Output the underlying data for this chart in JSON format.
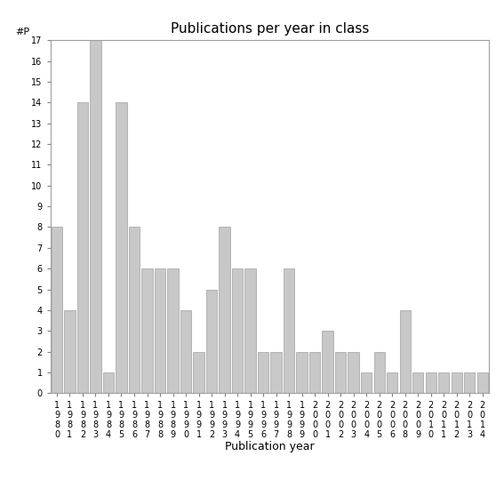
{
  "title": "Publications per year in class",
  "xlabel": "Publication year",
  "ylabel": "#P",
  "bar_color": "#c8c8c8",
  "bar_edgecolor": "#a0a0a0",
  "background_color": "#ffffff",
  "ylim": [
    0,
    17
  ],
  "yticks": [
    0,
    1,
    2,
    3,
    4,
    5,
    6,
    7,
    8,
    9,
    10,
    11,
    12,
    13,
    14,
    15,
    16,
    17
  ],
  "years": [
    "1980",
    "1981",
    "1982",
    "1983",
    "1984",
    "1985",
    "1986",
    "1987",
    "1988",
    "1989",
    "1990",
    "1991",
    "1992",
    "1993",
    "1994",
    "1995",
    "1996",
    "1997",
    "1998",
    "1999",
    "2000",
    "2001",
    "2002",
    "2003",
    "2004",
    "2005",
    "2006",
    "2008",
    "2009",
    "2010",
    "2011",
    "2012",
    "2013",
    "2014"
  ],
  "values": [
    8,
    4,
    14,
    17,
    1,
    14,
    8,
    6,
    6,
    6,
    4,
    2,
    5,
    8,
    6,
    6,
    2,
    2,
    6,
    2,
    2,
    3,
    2,
    2,
    1,
    2,
    1,
    4,
    1,
    1,
    1,
    1,
    1,
    1
  ],
  "title_fontsize": 11,
  "axis_fontsize": 8,
  "xlabel_fontsize": 9,
  "tick_fontsize": 7
}
